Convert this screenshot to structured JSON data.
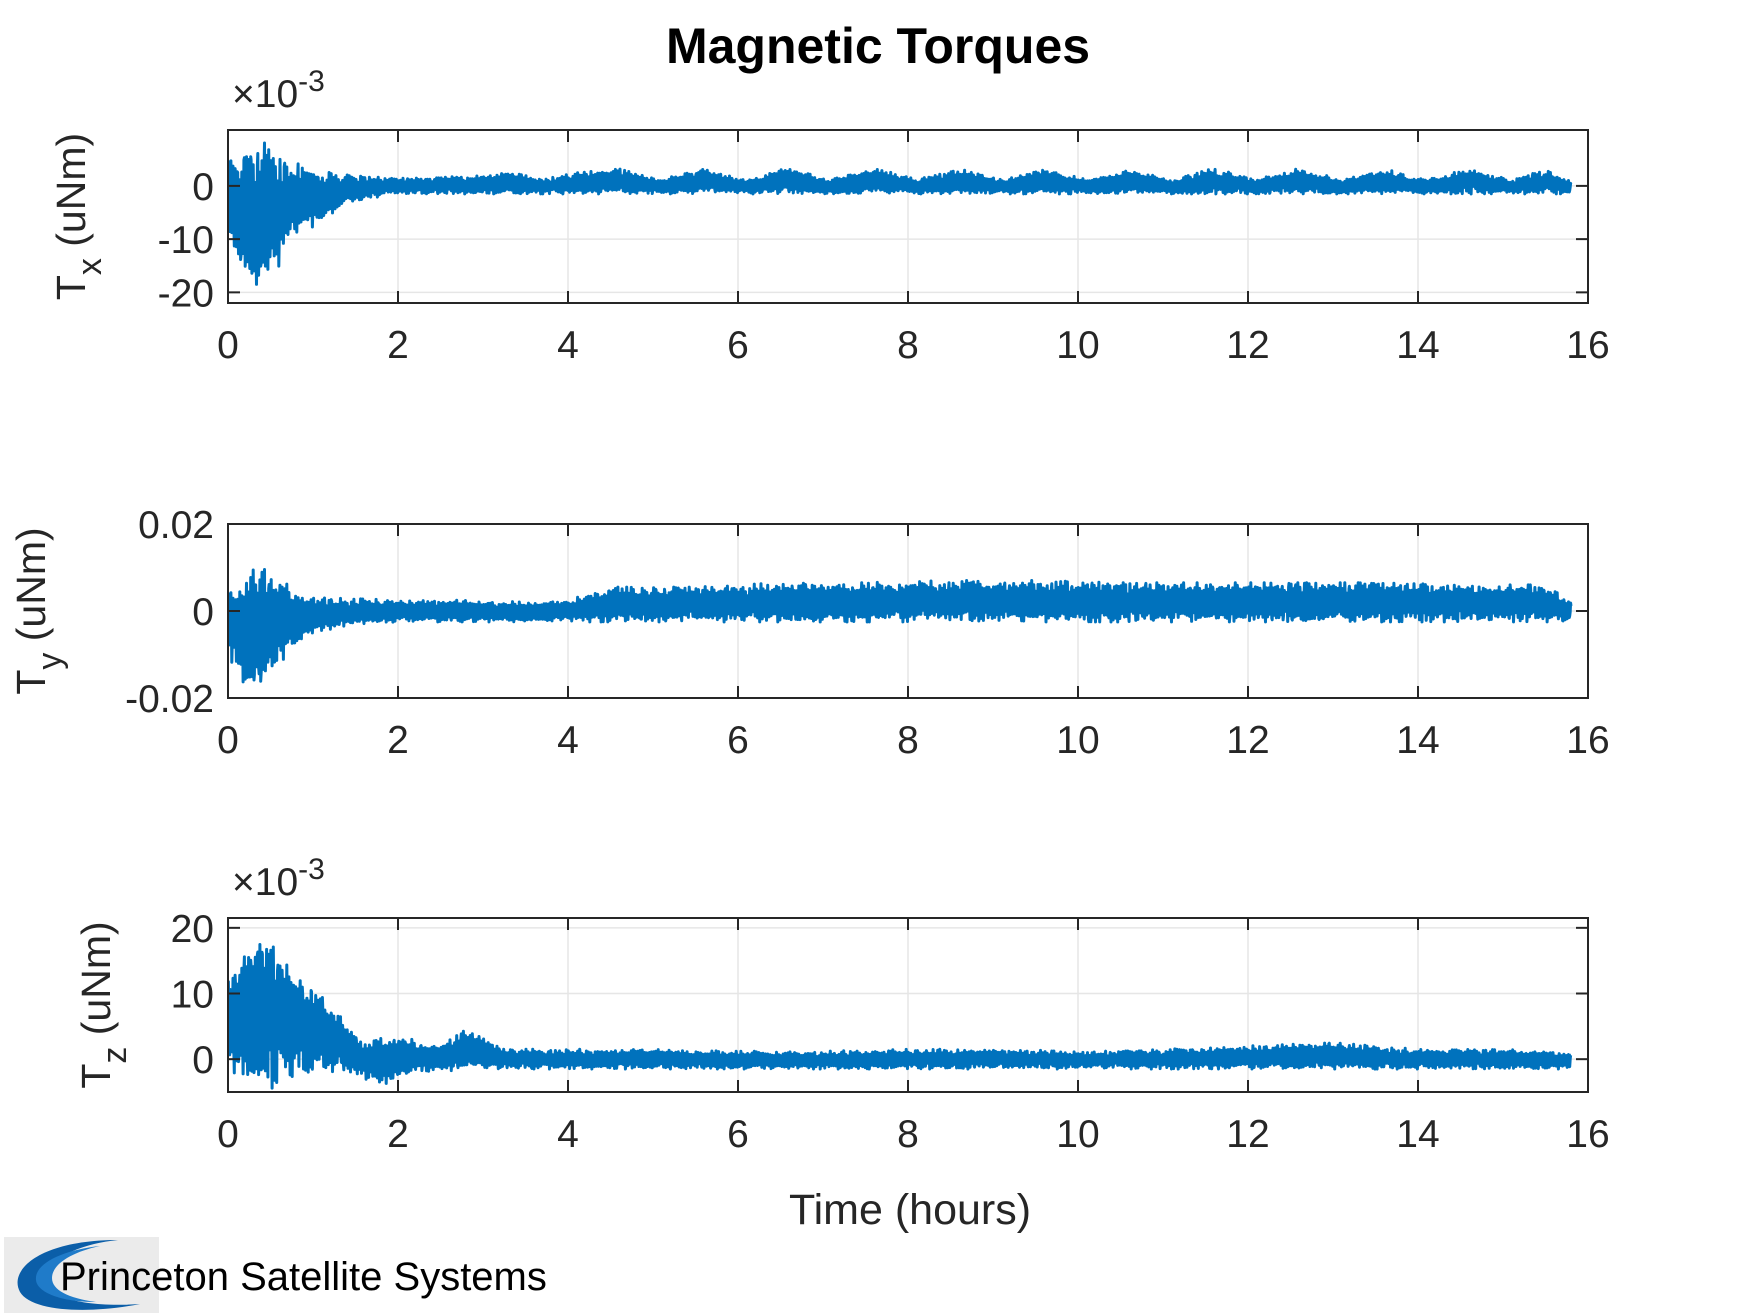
{
  "figure": {
    "title": "Magnetic Torques",
    "xlabel": "Time (hours)",
    "brand_name": "Princeton Satellite Systems",
    "line_color": "#0072BD",
    "grid_color": "#e6e6e6",
    "axes_color": "#262626"
  },
  "chart_data": [
    {
      "type": "line",
      "name": "Tx",
      "ylabel_main": "T",
      "ylabel_sub": "x",
      "ylabel_unit": " (uNm)",
      "multiplier_prefix": "×10",
      "multiplier_exp": "-3",
      "xlim": [
        0,
        16
      ],
      "ylim": [
        -22,
        10.5
      ],
      "x_ticks": [
        0,
        2,
        4,
        6,
        8,
        10,
        12,
        14,
        16
      ],
      "y_ticks": [
        -20,
        -10,
        0
      ],
      "grid": true,
      "series": [
        {
          "color": "#0072BD",
          "t_end": 15.8,
          "envelope": [
            [
              0,
              9
            ],
            [
              0.15,
              6
            ],
            [
              0.3,
              10
            ],
            [
              0.5,
              8
            ],
            [
              0.7,
              5
            ],
            [
              1.0,
              3.2
            ],
            [
              1.3,
              2.2
            ],
            [
              2.0,
              1.5
            ],
            [
              2.8,
              1.8
            ],
            [
              3.3,
              2.8
            ],
            [
              3.7,
              1.2
            ],
            [
              4.1,
              2.5
            ],
            [
              4.6,
              3.2
            ],
            [
              5.1,
              1.2
            ],
            [
              5.6,
              3.4
            ],
            [
              6.1,
              1.0
            ],
            [
              6.6,
              3.5
            ],
            [
              7.1,
              1.2
            ],
            [
              7.6,
              3.4
            ],
            [
              8.1,
              1.2
            ],
            [
              8.6,
              3.2
            ],
            [
              9.1,
              1.2
            ],
            [
              9.6,
              3.2
            ],
            [
              10.1,
              1.2
            ],
            [
              10.6,
              3.2
            ],
            [
              11.1,
              1.2
            ],
            [
              11.6,
              3.3
            ],
            [
              12.1,
              1.2
            ],
            [
              12.6,
              3.3
            ],
            [
              13.1,
              1.2
            ],
            [
              13.6,
              3.2
            ],
            [
              14.1,
              1.2
            ],
            [
              14.6,
              3.2
            ],
            [
              15.1,
              1.2
            ],
            [
              15.5,
              3.0
            ],
            [
              15.8,
              0.8
            ]
          ],
          "early": [
            [
              0,
              -9
            ],
            [
              0.2,
              -19
            ],
            [
              0.35,
              -22
            ],
            [
              0.5,
              -18
            ],
            [
              0.8,
              -9
            ],
            [
              1.1,
              -7
            ],
            [
              1.4,
              -3
            ],
            [
              2.0,
              -1.5
            ],
            [
              15.8,
              -1.5
            ]
          ]
        }
      ]
    },
    {
      "type": "line",
      "name": "Ty",
      "ylabel_main": "T",
      "ylabel_sub": "y",
      "ylabel_unit": " (uNm)",
      "multiplier_prefix": "",
      "multiplier_exp": "",
      "xlim": [
        0,
        16
      ],
      "ylim": [
        -0.02,
        0.02
      ],
      "x_ticks": [
        0,
        2,
        4,
        6,
        8,
        10,
        12,
        14,
        16
      ],
      "y_ticks": [
        -0.02,
        0,
        0.02
      ],
      "y_tick_labels": [
        "-0.02",
        "0",
        "0.02"
      ],
      "grid": true,
      "series": [
        {
          "color": "#0072BD",
          "t_end": 15.8,
          "envelope": [
            [
              0,
              0.008
            ],
            [
              0.15,
              0.006
            ],
            [
              0.3,
              0.013
            ],
            [
              0.5,
              0.01
            ],
            [
              0.8,
              0.004
            ],
            [
              1.2,
              0.003
            ],
            [
              2.0,
              0.0025
            ],
            [
              3.0,
              0.0025
            ],
            [
              3.5,
              0.002
            ],
            [
              4.0,
              0.0025
            ],
            [
              4.5,
              0.0055
            ],
            [
              5.5,
              0.0055
            ],
            [
              6.5,
              0.0065
            ],
            [
              7.5,
              0.0065
            ],
            [
              8.5,
              0.007
            ],
            [
              9.5,
              0.007
            ],
            [
              10.5,
              0.0065
            ],
            [
              11.5,
              0.0065
            ],
            [
              12.5,
              0.0065
            ],
            [
              13.5,
              0.0065
            ],
            [
              14.5,
              0.006
            ],
            [
              15.5,
              0.006
            ],
            [
              15.8,
              0.002
            ]
          ],
          "early": [
            [
              0,
              -0.01
            ],
            [
              0.2,
              -0.018
            ],
            [
              0.4,
              -0.02
            ],
            [
              0.6,
              -0.012
            ],
            [
              1.0,
              -0.005
            ],
            [
              1.5,
              -0.003
            ],
            [
              2.0,
              -0.0025
            ],
            [
              15.8,
              -0.0025
            ]
          ]
        }
      ]
    },
    {
      "type": "line",
      "name": "Tz",
      "ylabel_main": "T",
      "ylabel_sub": "z",
      "ylabel_unit": " (uNm)",
      "multiplier_prefix": "×10",
      "multiplier_exp": "-3",
      "xlim": [
        0,
        16
      ],
      "ylim": [
        -5,
        21.5
      ],
      "x_ticks": [
        0,
        2,
        4,
        6,
        8,
        10,
        12,
        14,
        16
      ],
      "y_ticks": [
        0,
        10,
        20
      ],
      "grid": true,
      "series": [
        {
          "color": "#0072BD",
          "t_end": 15.8,
          "envelope": [
            [
              0,
              12
            ],
            [
              0.2,
              16
            ],
            [
              0.4,
              21.5
            ],
            [
              0.6,
              17
            ],
            [
              0.8,
              13
            ],
            [
              1.0,
              12
            ],
            [
              1.2,
              8
            ],
            [
              1.6,
              3
            ],
            [
              2.0,
              3.5
            ],
            [
              2.5,
              2
            ],
            [
              2.8,
              4.5
            ],
            [
              3.3,
              1.5
            ],
            [
              4.0,
              1.5
            ],
            [
              5.0,
              1.5
            ],
            [
              6.0,
              1.2
            ],
            [
              7.0,
              1.2
            ],
            [
              8.0,
              1.5
            ],
            [
              9.0,
              1.5
            ],
            [
              10.0,
              1.2
            ],
            [
              11.0,
              1.5
            ],
            [
              12.0,
              2.0
            ],
            [
              13.0,
              2.5
            ],
            [
              14.0,
              1.5
            ],
            [
              15.0,
              1.5
            ],
            [
              15.8,
              1.0
            ]
          ],
          "early": [
            [
              0,
              -2
            ],
            [
              0.2,
              -4
            ],
            [
              0.4,
              -5
            ],
            [
              0.6,
              -4
            ],
            [
              0.9,
              -2
            ],
            [
              1.3,
              -2
            ],
            [
              1.8,
              -4
            ],
            [
              2.2,
              -2
            ],
            [
              3.0,
              -1.5
            ],
            [
              15.8,
              -1.5
            ]
          ]
        }
      ]
    }
  ]
}
